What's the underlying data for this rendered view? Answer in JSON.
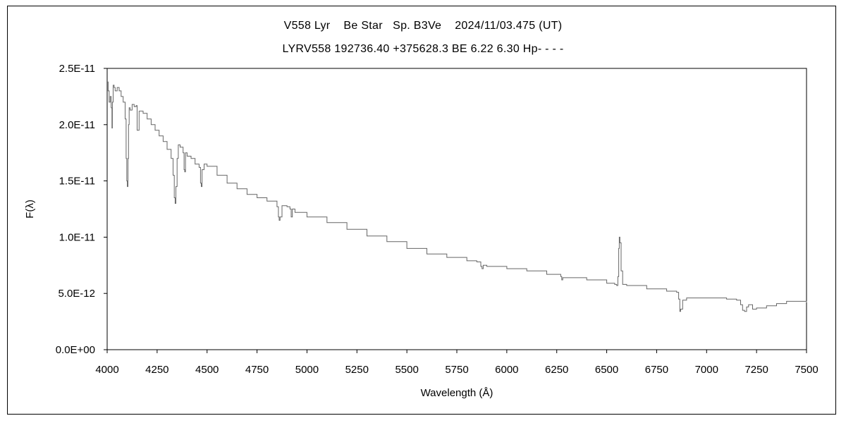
{
  "chart_data": {
    "type": "line",
    "title": "V558 Lyr    Be Star   Sp. B3Ve    2024/11/03.475 (UT)",
    "subtitle": "LYRV558 192736.40 +375628.3 BE 6.22 6.30 Hp- - - -",
    "xlabel": "Wavelength (Å)",
    "ylabel": "F(λ)",
    "xlim": [
      4000,
      7500
    ],
    "ylim": [
      0,
      2.5e-11
    ],
    "grid": false,
    "x_ticks": [
      4000,
      4250,
      4500,
      4750,
      5000,
      5250,
      5500,
      5750,
      6000,
      6250,
      6500,
      6750,
      7000,
      7250,
      7500
    ],
    "x_tick_labels": [
      "4000",
      "4250",
      "4500",
      "4750",
      "5000",
      "5250",
      "5500",
      "5750",
      "6000",
      "6250",
      "6500",
      "6750",
      "7000",
      "7250",
      "7500"
    ],
    "y_ticks": [
      0,
      5e-12,
      1e-11,
      1.5e-11,
      2e-11,
      2.5e-11
    ],
    "y_tick_labels": [
      "0.0E+00",
      "5.0E-12",
      "1.0E-11",
      "1.5E-11",
      "2.0E-11",
      "2.5E-11"
    ],
    "series": [
      {
        "color": "#666666",
        "x": [
          4000,
          4005,
          4010,
          4015,
          4020,
          4024,
          4026,
          4030,
          4035,
          4040,
          4050,
          4060,
          4070,
          4080,
          4090,
          4095,
          4098,
          4101,
          4104,
          4107,
          4110,
          4115,
          4125,
          4135,
          4145,
          4150,
          4160,
          4180,
          4200,
          4220,
          4240,
          4260,
          4280,
          4300,
          4320,
          4330,
          4336,
          4340,
          4344,
          4350,
          4356,
          4365,
          4380,
          4385,
          4388,
          4392,
          4400,
          4420,
          4440,
          4460,
          4467,
          4471,
          4475,
          4485,
          4500,
          4550,
          4600,
          4650,
          4700,
          4750,
          4800,
          4850,
          4857,
          4861,
          4865,
          4875,
          4900,
          4915,
          4921,
          4927,
          4940,
          5000,
          5100,
          5200,
          5300,
          5400,
          5500,
          5600,
          5700,
          5800,
          5850,
          5870,
          5876,
          5882,
          5900,
          6000,
          6100,
          6200,
          6270,
          6275,
          6280,
          6290,
          6400,
          6500,
          6540,
          6550,
          6556,
          6560,
          6563,
          6566,
          6572,
          6580,
          6600,
          6700,
          6800,
          6850,
          6860,
          6866,
          6870,
          6880,
          6900,
          7000,
          7100,
          7150,
          7170,
          7180,
          7190,
          7200,
          7210,
          7230,
          7250,
          7300,
          7350,
          7400,
          7450,
          7500
        ],
        "y": [
          2.38e-11,
          2.3e-11,
          2.2e-11,
          2.25e-11,
          2.15e-11,
          1.97e-11,
          2.2e-11,
          2.35e-11,
          2.33e-11,
          2.3e-11,
          2.33e-11,
          2.3e-11,
          2.25e-11,
          2.2e-11,
          2.05e-11,
          1.7e-11,
          1.5e-11,
          1.45e-11,
          1.7e-11,
          2e-11,
          2.15e-11,
          2.13e-11,
          2.18e-11,
          2.16e-11,
          2.17e-11,
          1.95e-11,
          2.12e-11,
          2.1e-11,
          2.05e-11,
          2e-11,
          1.95e-11,
          1.9e-11,
          1.85e-11,
          1.78e-11,
          1.7e-11,
          1.55e-11,
          1.35e-11,
          1.3e-11,
          1.45e-11,
          1.7e-11,
          1.82e-11,
          1.8e-11,
          1.75e-11,
          1.6e-11,
          1.58e-11,
          1.75e-11,
          1.72e-11,
          1.7e-11,
          1.65e-11,
          1.62e-11,
          1.48e-11,
          1.45e-11,
          1.6e-11,
          1.65e-11,
          1.63e-11,
          1.55e-11,
          1.48e-11,
          1.43e-11,
          1.38e-11,
          1.35e-11,
          1.32e-11,
          1.27e-11,
          1.18e-11,
          1.15e-11,
          1.18e-11,
          1.28e-11,
          1.27e-11,
          1.25e-11,
          1.18e-11,
          1.25e-11,
          1.22e-11,
          1.18e-11,
          1.13e-11,
          1.07e-11,
          1.01e-11,
          9.6e-12,
          9e-12,
          8.5e-12,
          8.2e-12,
          7.9e-12,
          7.8e-12,
          7.4e-12,
          7.2e-12,
          7.5e-12,
          7.4e-12,
          7.2e-12,
          7e-12,
          6.7e-12,
          6.5e-12,
          6.2e-12,
          6.4e-12,
          6.4e-12,
          6.2e-12,
          5.9e-12,
          5.8e-12,
          5.7e-12,
          6.5e-12,
          9e-12,
          1e-11,
          9.5e-12,
          7e-12,
          5.8e-12,
          5.7e-12,
          5.4e-12,
          5.2e-12,
          5.1e-12,
          4.5e-12,
          3.4e-12,
          3.6e-12,
          4.4e-12,
          4.6e-12,
          4.6e-12,
          4.5e-12,
          4.4e-12,
          4e-12,
          3.5e-12,
          3.4e-12,
          3.8e-12,
          4e-12,
          3.6e-12,
          3.7e-12,
          3.9e-12,
          4.1e-12,
          4.3e-12,
          4.3e-12,
          4.2e-12
        ]
      }
    ]
  }
}
